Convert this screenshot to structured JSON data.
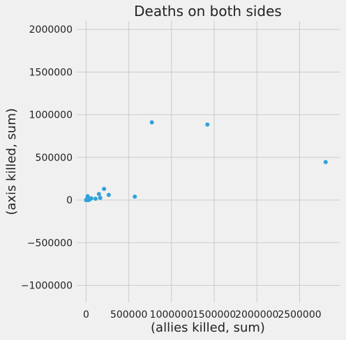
{
  "chart_data": {
    "type": "scatter",
    "title": "Deaths on both sides",
    "xlabel": "(allies killed, sum)",
    "ylabel": "(axis killed, sum)",
    "xlim": [
      -110000,
      2970000
    ],
    "ylim": [
      -1200000,
      2100000
    ],
    "xticks": [
      0,
      500000,
      1000000,
      1500000,
      2000000,
      2500000
    ],
    "xtick_labels": [
      "0",
      "500000",
      "1000000",
      "1500000",
      "2000000",
      "2500000"
    ],
    "yticks": [
      -1000000,
      -500000,
      0,
      500000,
      1000000,
      1500000,
      2000000
    ],
    "ytick_labels": [
      "−1000000",
      "−500000",
      "0",
      "500000",
      "1000000",
      "1500000",
      "2000000"
    ],
    "grid": true,
    "color": "#30a2da",
    "points": [
      {
        "x": 0,
        "y": 0
      },
      {
        "x": 2000,
        "y": 1000
      },
      {
        "x": 5000,
        "y": 3000
      },
      {
        "x": 10000,
        "y": 5000
      },
      {
        "x": 15000,
        "y": 20000
      },
      {
        "x": 18000,
        "y": 45000
      },
      {
        "x": 25000,
        "y": 0
      },
      {
        "x": 30000,
        "y": 2000
      },
      {
        "x": 40000,
        "y": 5000
      },
      {
        "x": 60000,
        "y": 20000
      },
      {
        "x": 110000,
        "y": 15000
      },
      {
        "x": 150000,
        "y": 70000
      },
      {
        "x": 165000,
        "y": 25000
      },
      {
        "x": 210000,
        "y": 130000
      },
      {
        "x": 265000,
        "y": 60000
      },
      {
        "x": 570000,
        "y": 40000
      },
      {
        "x": 770000,
        "y": 910000
      },
      {
        "x": 1420000,
        "y": 885000
      },
      {
        "x": 2805000,
        "y": 445000
      }
    ]
  }
}
